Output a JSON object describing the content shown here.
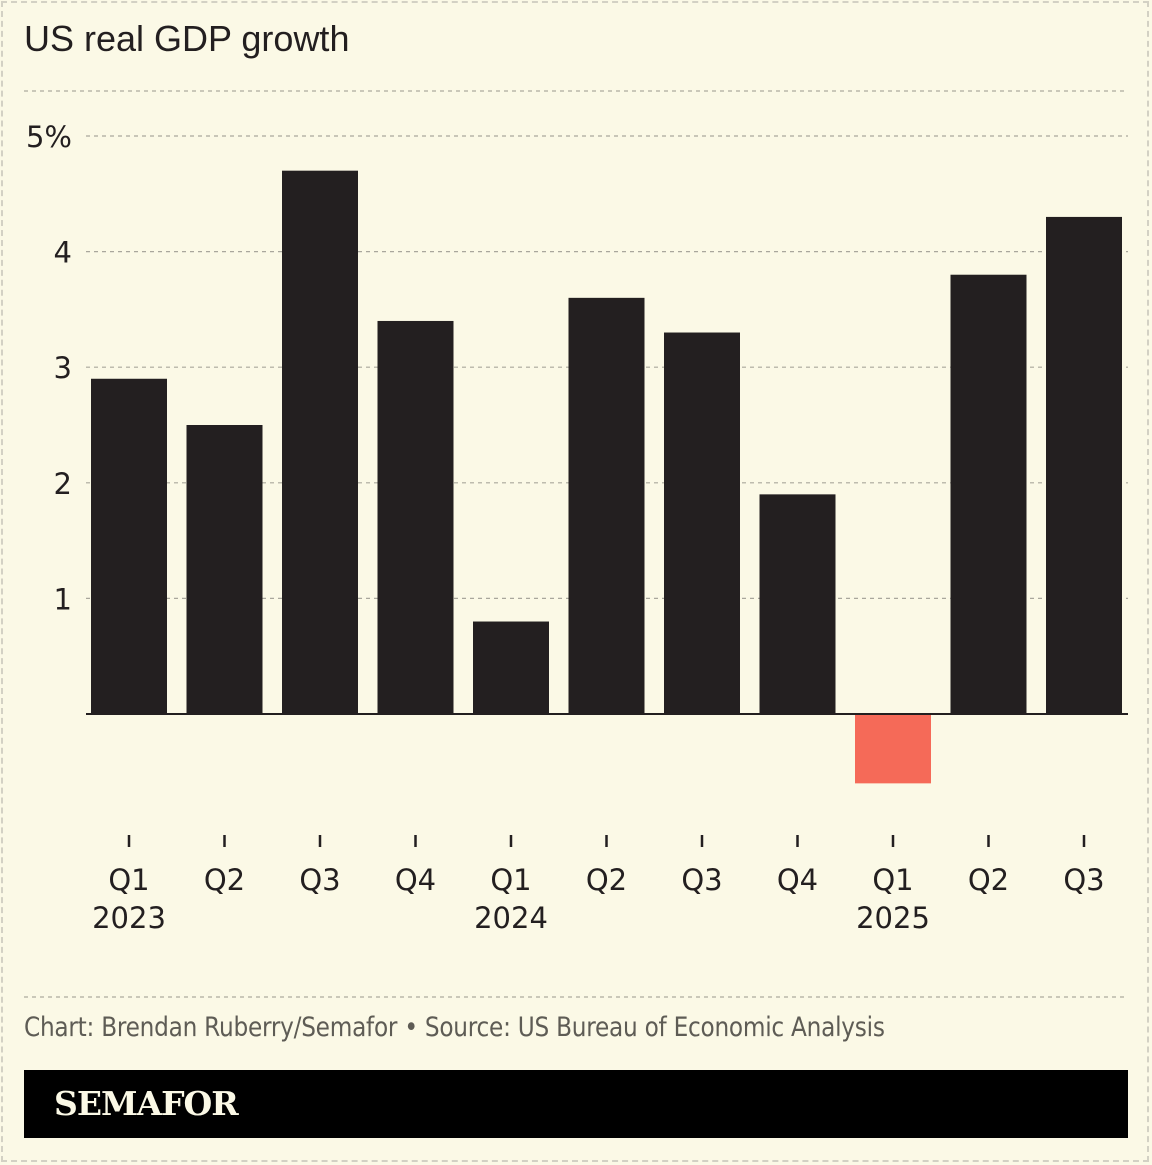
{
  "title": "US real GDP growth",
  "source": "Chart: Brendan Ruberry/Semafor • Source: US Bureau of Economic Analysis",
  "brand": "SEMAFOR",
  "colors": {
    "positive": "#231f20",
    "negative": "#f56a58",
    "background": "#fbf9e6"
  },
  "chart_data": {
    "type": "bar",
    "title": "US real GDP growth",
    "categories": [
      "Q1 2023",
      "Q2 2023",
      "Q3 2023",
      "Q4 2023",
      "Q1 2024",
      "Q2 2024",
      "Q3 2024",
      "Q4 2024",
      "Q1 2025",
      "Q2 2025",
      "Q3 2025"
    ],
    "tick_labels": [
      {
        "q": "Q1",
        "y": "2023"
      },
      {
        "q": "Q2",
        "y": ""
      },
      {
        "q": "Q3",
        "y": ""
      },
      {
        "q": "Q4",
        "y": ""
      },
      {
        "q": "Q1",
        "y": "2024"
      },
      {
        "q": "Q2",
        "y": ""
      },
      {
        "q": "Q3",
        "y": ""
      },
      {
        "q": "Q4",
        "y": ""
      },
      {
        "q": "Q1",
        "y": "2025"
      },
      {
        "q": "Q2",
        "y": ""
      },
      {
        "q": "Q3",
        "y": ""
      }
    ],
    "values": [
      2.9,
      2.5,
      4.7,
      3.4,
      0.8,
      3.6,
      3.3,
      1.9,
      -0.6,
      3.8,
      4.3
    ],
    "ylim": [
      -0.6,
      5
    ],
    "yticks": [
      1,
      2,
      3,
      4,
      5
    ],
    "ytick_labels": [
      "1",
      "2",
      "3",
      "4",
      "5%"
    ],
    "grid": true,
    "xlabel": "",
    "ylabel": ""
  }
}
